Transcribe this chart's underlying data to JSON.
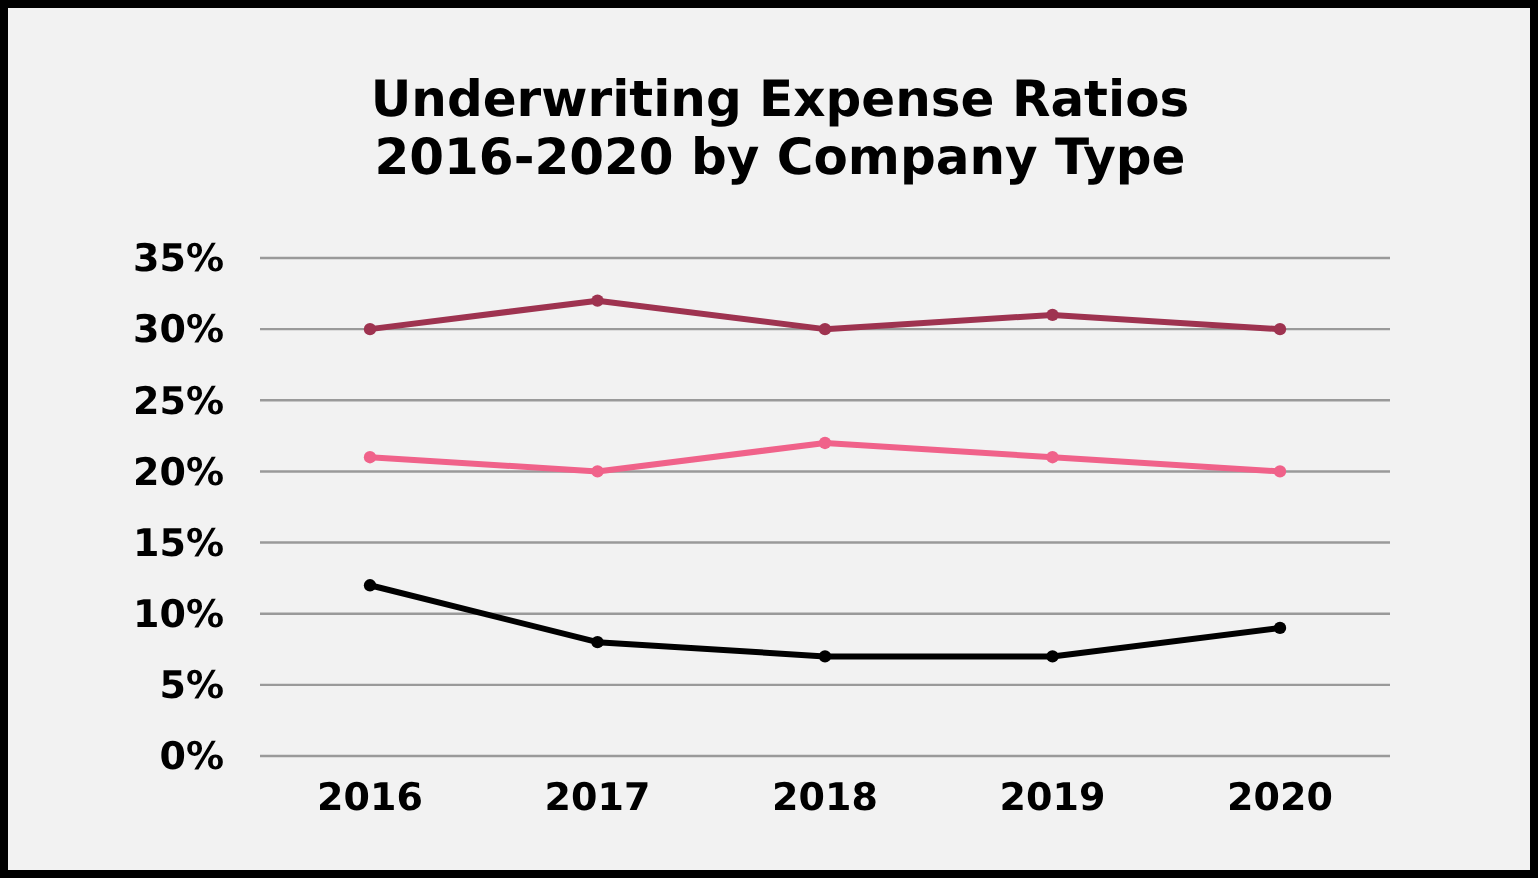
{
  "chart_data": {
    "type": "line",
    "title": "Underwriting Expense Ratios\n2016-2020 by Company Type",
    "categories": [
      "2016",
      "2017",
      "2018",
      "2019",
      "2020"
    ],
    "series": [
      {
        "color": "#9e3350",
        "values": [
          30,
          32,
          30,
          31,
          30
        ]
      },
      {
        "color": "#f0628a",
        "values": [
          21,
          20,
          22,
          21,
          20
        ]
      },
      {
        "color": "#000000",
        "values": [
          12,
          8,
          7,
          7,
          9
        ]
      }
    ],
    "ylim": [
      0,
      35
    ],
    "yticks": [
      {
        "value": 0,
        "label": "0%"
      },
      {
        "value": 5,
        "label": "5%"
      },
      {
        "value": 10,
        "label": "10%"
      },
      {
        "value": 15,
        "label": "15%"
      },
      {
        "value": 20,
        "label": "20%"
      },
      {
        "value": 25,
        "label": "25%"
      },
      {
        "value": 30,
        "label": "30%"
      },
      {
        "value": 35,
        "label": "35%"
      }
    ],
    "grid": "y",
    "marker": "circle",
    "line_style": "solid"
  }
}
